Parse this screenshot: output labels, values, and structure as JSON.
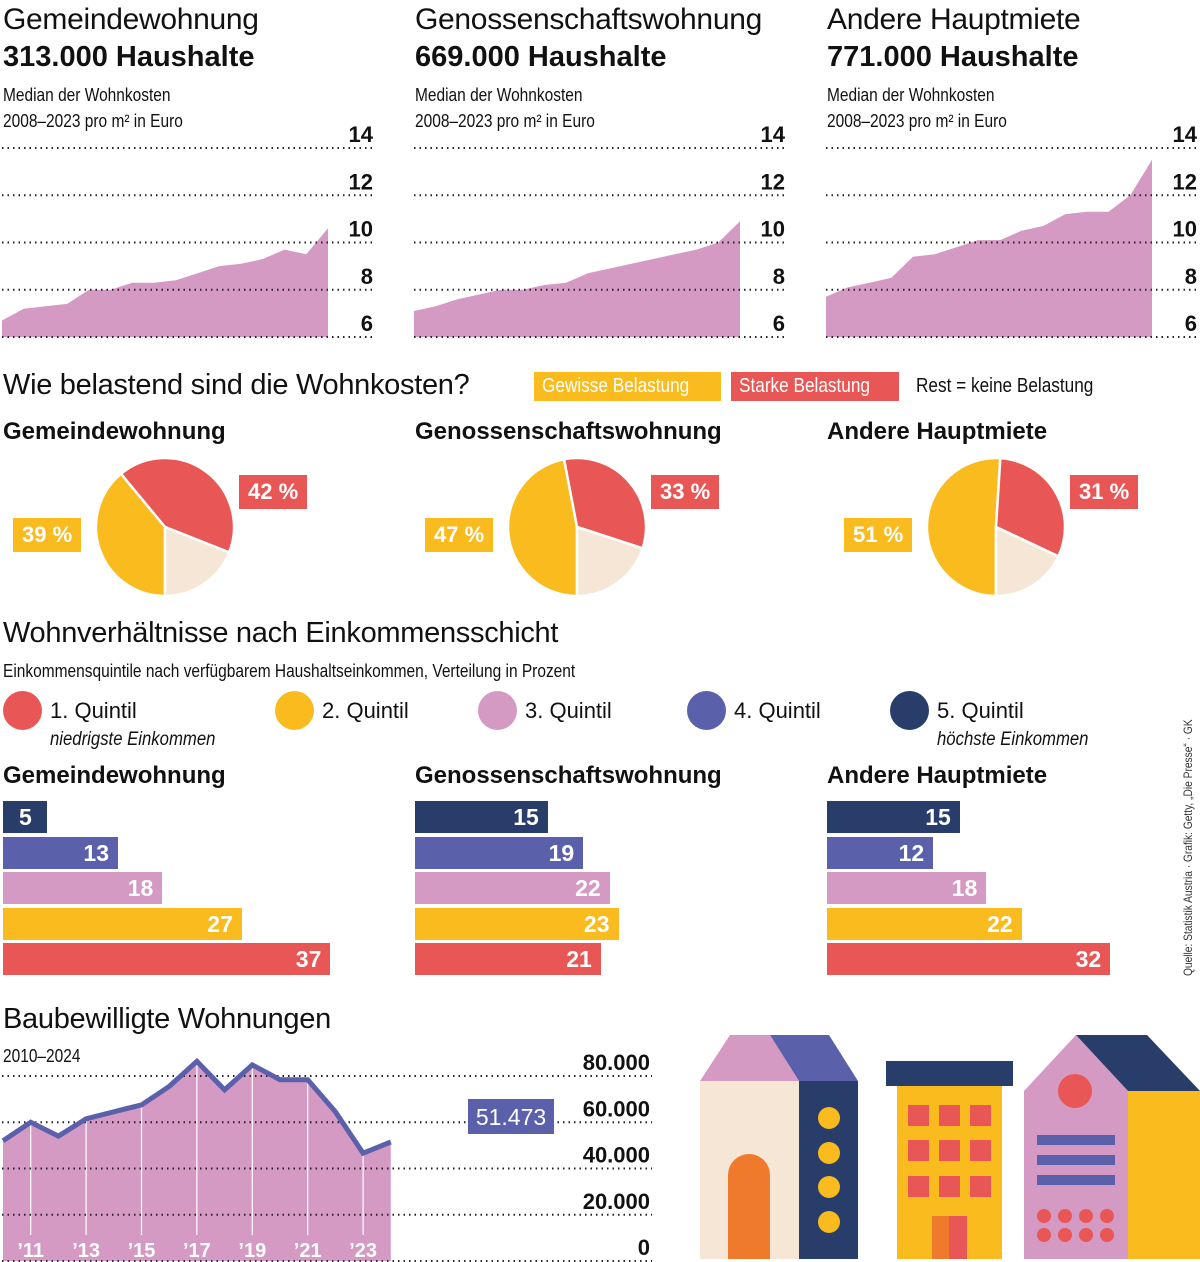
{
  "colors": {
    "pink": "#d49ac4",
    "red": "#e85755",
    "yellow": "#f9bb1e",
    "beige": "#f5e6d6",
    "purple": "#5b60aa",
    "navy": "#293d6b",
    "orange": "#ef7a2b"
  },
  "cost_section": {
    "panels": [
      {
        "title": "Gemeindewohnung",
        "households": "313.000 Haushalte",
        "subtitle_1": "Median der Wohnkosten",
        "subtitle_2": "2008–2023 pro m² in Euro"
      },
      {
        "title": "Genossenschaftswohnung",
        "households": "669.000 Haushalte",
        "subtitle_1": "Median der Wohnkosten",
        "subtitle_2": "2008–2023 pro m² in Euro"
      },
      {
        "title": "Andere Hauptmiete",
        "households": "771.000 Haushalte",
        "subtitle_1": "Median der Wohnkosten",
        "subtitle_2": "2008–2023 pro m² in Euro"
      }
    ]
  },
  "burden_section": {
    "title": "Wie belastend sind die Wohnkosten?",
    "legend_some": "Gewisse Belastung",
    "legend_strong": "Starke Belastung",
    "legend_rest": "Rest = keine Belastung",
    "panels": [
      {
        "title": "Gemeindewohnung",
        "some_label": "39 %",
        "strong_label": "42 %"
      },
      {
        "title": "Genossenschaftswohnung",
        "some_label": "47 %",
        "strong_label": "33 %"
      },
      {
        "title": "Andere Hauptmiete",
        "some_label": "51 %",
        "strong_label": "31 %"
      }
    ]
  },
  "income_section": {
    "title": "Wohnverhältnisse nach Einkommensschicht",
    "subtitle": "Einkommensquintile nach verfügbarem Haushaltseinkommen, Verteilung in Prozent",
    "quintiles": [
      {
        "label": "1. Quintil",
        "note": "niedrigste Einkommen"
      },
      {
        "label": "2. Quintil",
        "note": ""
      },
      {
        "label": "3. Quintil",
        "note": ""
      },
      {
        "label": "4. Quintil",
        "note": ""
      },
      {
        "label": "5. Quintil",
        "note": "höchste Einkommen"
      }
    ],
    "panels": [
      {
        "title": "Gemeindewohnung"
      },
      {
        "title": "Genossenschaftswohnung"
      },
      {
        "title": "Andere Hauptmiete"
      }
    ]
  },
  "permits_section": {
    "title": "Baubewilligte Wohnungen",
    "subtitle": "2010–2024",
    "last_value_label": "51.473"
  },
  "credit": "Quelle: Statistik Austria · Grafik: Getty, „Die Presse“ · GK",
  "chart_data": [
    {
      "type": "area",
      "title": "Gemeindewohnung – Median der Wohnkosten 2008–2023 pro m² in Euro",
      "x": [
        2008,
        2009,
        2010,
        2011,
        2012,
        2013,
        2014,
        2015,
        2016,
        2017,
        2018,
        2019,
        2020,
        2021,
        2022,
        2023
      ],
      "values": [
        6.7,
        7.2,
        7.3,
        7.4,
        8.0,
        8.0,
        8.3,
        8.3,
        8.4,
        8.7,
        9.0,
        9.1,
        9.3,
        9.7,
        9.5,
        10.6
      ],
      "yticks": [
        "14",
        "12",
        "10",
        "8",
        "6"
      ],
      "ylim": [
        6,
        14
      ],
      "grid": true
    },
    {
      "type": "area",
      "title": "Genossenschaftswohnung – Median der Wohnkosten 2008–2023 pro m² in Euro",
      "x": [
        2008,
        2009,
        2010,
        2011,
        2012,
        2013,
        2014,
        2015,
        2016,
        2017,
        2018,
        2019,
        2020,
        2021,
        2022,
        2023
      ],
      "values": [
        7.1,
        7.3,
        7.6,
        7.8,
        8.0,
        8.0,
        8.2,
        8.3,
        8.7,
        8.9,
        9.1,
        9.3,
        9.5,
        9.7,
        10.0,
        10.9
      ],
      "yticks": [
        "14",
        "12",
        "10",
        "8",
        "6"
      ],
      "ylim": [
        6,
        14
      ],
      "grid": true
    },
    {
      "type": "area",
      "title": "Andere Hauptmiete – Median der Wohnkosten 2008–2023 pro m² in Euro",
      "x": [
        2008,
        2009,
        2010,
        2011,
        2012,
        2013,
        2014,
        2015,
        2016,
        2017,
        2018,
        2019,
        2020,
        2021,
        2022,
        2023
      ],
      "values": [
        7.7,
        8.1,
        8.3,
        8.5,
        9.4,
        9.5,
        9.8,
        10.1,
        10.1,
        10.5,
        10.7,
        11.2,
        11.3,
        11.3,
        12.0,
        13.5
      ],
      "yticks": [
        "14",
        "12",
        "10",
        "8",
        "6"
      ],
      "ylim": [
        6,
        14
      ],
      "grid": true
    },
    {
      "type": "pie",
      "title": "Gemeindewohnung",
      "labels": [
        "Gewisse Belastung",
        "Starke Belastung",
        "Keine Belastung"
      ],
      "values": [
        39,
        42,
        19
      ]
    },
    {
      "type": "pie",
      "title": "Genossenschaftswohnung",
      "labels": [
        "Gewisse Belastung",
        "Starke Belastung",
        "Keine Belastung"
      ],
      "values": [
        47,
        33,
        20
      ]
    },
    {
      "type": "pie",
      "title": "Andere Hauptmiete",
      "labels": [
        "Gewisse Belastung",
        "Starke Belastung",
        "Keine Belastung"
      ],
      "values": [
        51,
        31,
        18
      ]
    },
    {
      "type": "bar",
      "orientation": "horizontal",
      "title": "Gemeindewohnung",
      "categories": [
        "5. Quintil",
        "4. Quintil",
        "3. Quintil",
        "2. Quintil",
        "1. Quintil"
      ],
      "values": [
        5,
        13,
        18,
        27,
        37
      ]
    },
    {
      "type": "bar",
      "orientation": "horizontal",
      "title": "Genossenschaftswohnung",
      "categories": [
        "5. Quintil",
        "4. Quintil",
        "3. Quintil",
        "2. Quintil",
        "1. Quintil"
      ],
      "values": [
        15,
        19,
        22,
        23,
        21
      ]
    },
    {
      "type": "bar",
      "orientation": "horizontal",
      "title": "Andere Hauptmiete",
      "categories": [
        "5. Quintil",
        "4. Quintil",
        "3. Quintil",
        "2. Quintil",
        "1. Quintil"
      ],
      "values": [
        15,
        12,
        18,
        22,
        32
      ]
    },
    {
      "type": "area",
      "title": "Baubewilligte Wohnungen 2010–2024",
      "x": [
        2010,
        2011,
        2012,
        2013,
        2014,
        2015,
        2016,
        2017,
        2018,
        2019,
        2020,
        2021,
        2022,
        2023,
        2024
      ],
      "values": [
        52000,
        60000,
        54000,
        61500,
        64500,
        67500,
        75500,
        86300,
        74000,
        84800,
        78400,
        78400,
        64500,
        46600,
        51473
      ],
      "xticks": [
        "’11",
        "’13",
        "’15",
        "’17",
        "’19",
        "’21",
        "’23"
      ],
      "xtick_years": [
        2011,
        2013,
        2015,
        2017,
        2019,
        2021,
        2023
      ],
      "yticks": [
        "80.000",
        "60.000",
        "40.000",
        "20.000",
        "0"
      ],
      "ylim": [
        0,
        80000
      ],
      "annotation": "51.473",
      "grid": true
    }
  ]
}
